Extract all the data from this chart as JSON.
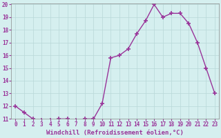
{
  "x": [
    0,
    1,
    2,
    3,
    4,
    5,
    6,
    7,
    8,
    9,
    10,
    11,
    12,
    13,
    14,
    15,
    16,
    17,
    18,
    19,
    20,
    21,
    22,
    23
  ],
  "y": [
    12.0,
    11.5,
    11.0,
    10.9,
    10.9,
    11.0,
    11.0,
    10.9,
    11.0,
    11.0,
    12.2,
    15.8,
    16.0,
    16.5,
    17.7,
    18.7,
    20.0,
    19.0,
    19.3,
    19.3,
    18.5,
    17.0,
    15.0,
    13.0
  ],
  "line_color": "#993399",
  "marker": "+",
  "markersize": 4,
  "markeredgewidth": 1.2,
  "linewidth": 1,
  "xlabel": "Windchill (Refroidissement éolien,°C)",
  "xlabel_fontsize": 6.5,
  "ylim": [
    11,
    20
  ],
  "xlim": [
    -0.5,
    23.5
  ],
  "yticks": [
    11,
    12,
    13,
    14,
    15,
    16,
    17,
    18,
    19,
    20
  ],
  "xticks": [
    0,
    1,
    2,
    3,
    4,
    5,
    6,
    7,
    8,
    9,
    10,
    11,
    12,
    13,
    14,
    15,
    16,
    17,
    18,
    19,
    20,
    21,
    22,
    23
  ],
  "background_color": "#d5efef",
  "grid_color": "#b8d8d8",
  "tick_color": "#993399",
  "tick_fontsize": 5.5,
  "spine_color": "#888888"
}
